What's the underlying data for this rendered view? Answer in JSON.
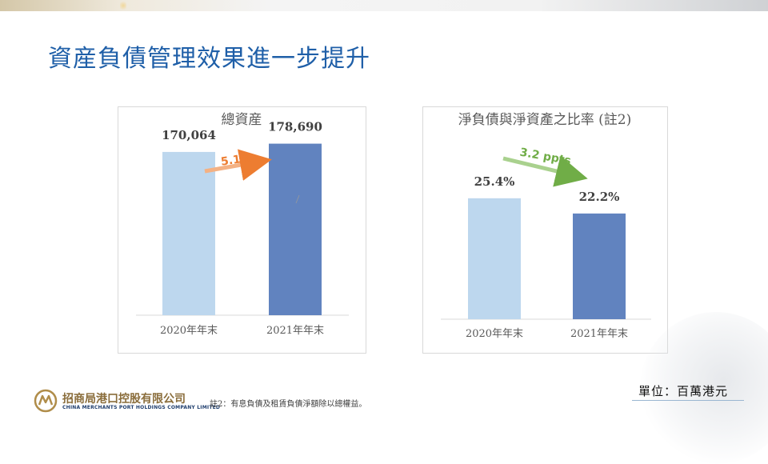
{
  "page": {
    "title": "資産負債管理效果進一步提升",
    "unit": "單位：百萬港元",
    "footnote": "註2：有息負債及租賃負債淨額除以總權益。"
  },
  "logo": {
    "name_cn": "招商局港口控股有限公司",
    "name_en": "CHINA MERCHANTS PORT HOLDINGS COMPANY LIMITED",
    "icon": "cmport-logo-icon"
  },
  "colors": {
    "title": "#1f5fa8",
    "bar_light": "#bdd7ee",
    "bar_dark": "#6183bf",
    "annotation_orange": "#ed7d31",
    "annotation_green": "#70ad47"
  },
  "chart_data": [
    {
      "type": "bar",
      "title": "總資産",
      "categories": [
        "2020年年末",
        "2021年年末"
      ],
      "values": [
        170064,
        178690
      ],
      "value_labels": [
        "170,064",
        "178,690"
      ],
      "ylim": [
        0,
        200000
      ],
      "annotation": "5.1%",
      "grid": false,
      "legend": "none"
    },
    {
      "type": "bar",
      "title": "淨負債與淨資產之比率 (註2)",
      "categories": [
        "2020年年末",
        "2021年年末"
      ],
      "values": [
        25.4,
        22.2
      ],
      "value_labels": [
        "25.4%",
        "22.2%"
      ],
      "ylim": [
        0,
        41
      ],
      "annotation": "3.2 ppts",
      "grid": false,
      "legend": "none"
    }
  ]
}
